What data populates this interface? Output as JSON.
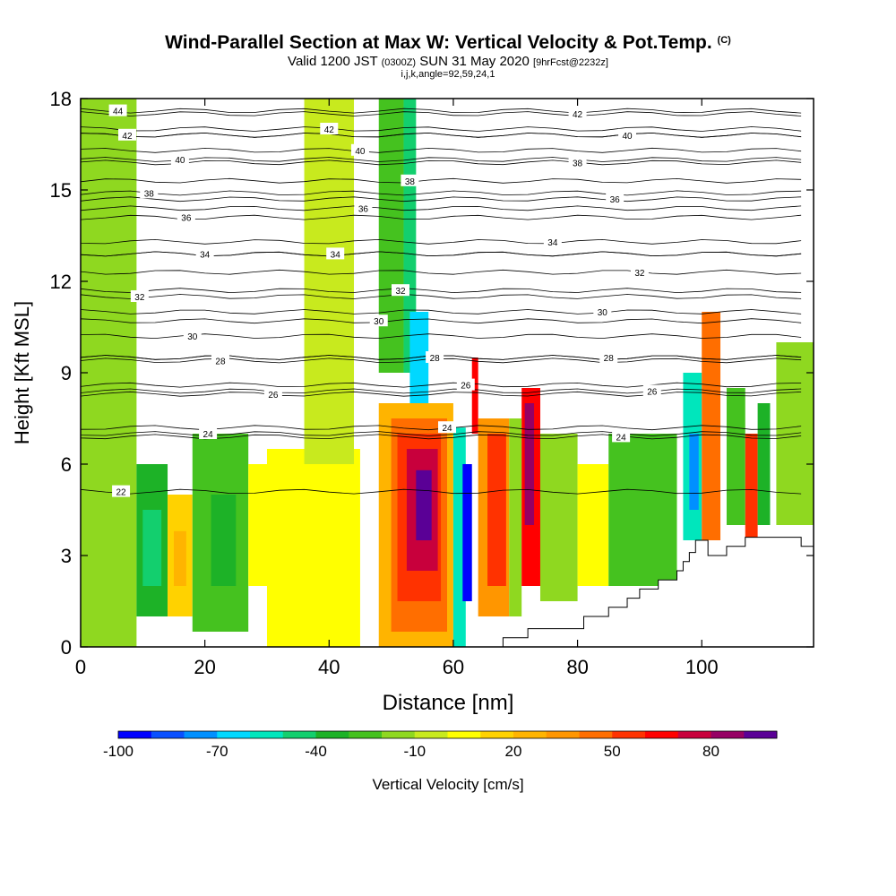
{
  "title": {
    "main": "Wind-Parallel Section at Max W: Vertical Velocity & Pot.Temp.",
    "copyright": "(C)",
    "valid_prefix": "Valid 1200 JST",
    "valid_utc": "(0300Z)",
    "valid_date": "SUN 31 May 2020",
    "forecast": "[9hrFcst@2232z]",
    "indices": "i,j,k,angle=92,59,24,1"
  },
  "chart_data": {
    "type": "heatmap",
    "xlabel": "Distance [nm]",
    "ylabel": "Height [Kft MSL]",
    "xlim": [
      0,
      118
    ],
    "ylim": [
      0,
      18
    ],
    "xticks": [
      0,
      20,
      40,
      60,
      80,
      100
    ],
    "yticks": [
      0,
      3,
      6,
      9,
      12,
      15,
      18
    ],
    "colorbar": {
      "label": "Vertical Velocity [cm/s]",
      "min": -100,
      "max": 100,
      "step": 10,
      "tick_values": [
        -100,
        -70,
        -40,
        -10,
        20,
        50,
        80
      ],
      "colors": [
        "#0000ff",
        "#0a50ff",
        "#0090ff",
        "#00d8ff",
        "#00e6bc",
        "#13cf6e",
        "#1db227",
        "#45c21f",
        "#8fd820",
        "#c8ea1e",
        "#ffff00",
        "#ffd200",
        "#ffb400",
        "#ff9600",
        "#ff6e00",
        "#ff3200",
        "#ff0000",
        "#c8003c",
        "#960064",
        "#5a0096"
      ]
    },
    "cells": [
      {
        "x0": 0,
        "x1": 9,
        "y0": 0,
        "y1": 18,
        "w": -12
      },
      {
        "x0": 9,
        "x1": 14,
        "y0": 1,
        "y1": 6,
        "w": -38
      },
      {
        "x0": 10,
        "x1": 13,
        "y0": 2,
        "y1": 4.5,
        "w": -45
      },
      {
        "x0": 14,
        "x1": 18,
        "y0": 1,
        "y1": 5,
        "w": 15
      },
      {
        "x0": 15,
        "x1": 17,
        "y0": 2,
        "y1": 3.8,
        "w": 25
      },
      {
        "x0": 18,
        "x1": 27,
        "y0": 0.5,
        "y1": 7,
        "w": -28
      },
      {
        "x0": 21,
        "x1": 25,
        "y0": 2,
        "y1": 5,
        "w": -40
      },
      {
        "x0": 27,
        "x1": 33,
        "y0": 2,
        "y1": 6,
        "w": 7
      },
      {
        "x0": 30,
        "x1": 45,
        "y0": 0,
        "y1": 6.5,
        "w": 5
      },
      {
        "x0": 36,
        "x1": 44,
        "y0": 6,
        "y1": 18,
        "w": -8
      },
      {
        "x0": 48,
        "x1": 52,
        "y0": 9,
        "y1": 18,
        "w": -28
      },
      {
        "x0": 52,
        "x1": 54,
        "y0": 9,
        "y1": 18,
        "w": -45
      },
      {
        "x0": 53,
        "x1": 56,
        "y0": 8,
        "y1": 11,
        "w": -62
      },
      {
        "x0": 48,
        "x1": 60,
        "y0": 0,
        "y1": 8,
        "w": 20
      },
      {
        "x0": 50,
        "x1": 59,
        "y0": 0.5,
        "y1": 7.5,
        "w": 40
      },
      {
        "x0": 51,
        "x1": 58,
        "y0": 1.5,
        "y1": 7,
        "w": 55
      },
      {
        "x0": 52.5,
        "x1": 57.5,
        "y0": 2.5,
        "y1": 6.5,
        "w": 72
      },
      {
        "x0": 54,
        "x1": 56.5,
        "y0": 3.5,
        "y1": 5.8,
        "w": 92
      },
      {
        "x0": 60,
        "x1": 62,
        "y0": 0,
        "y1": 7.2,
        "w": -55
      },
      {
        "x0": 61.5,
        "x1": 63,
        "y0": 1.5,
        "y1": 6,
        "w": -95
      },
      {
        "x0": 63,
        "x1": 64,
        "y0": 7,
        "y1": 9.5,
        "w": 65
      },
      {
        "x0": 64,
        "x1": 69,
        "y0": 1,
        "y1": 7.5,
        "w": 38
      },
      {
        "x0": 65.5,
        "x1": 68.5,
        "y0": 2,
        "y1": 7,
        "w": 52
      },
      {
        "x0": 69,
        "x1": 71,
        "y0": 1,
        "y1": 7.5,
        "w": -20
      },
      {
        "x0": 71,
        "x1": 74,
        "y0": 2,
        "y1": 8.5,
        "w": 60
      },
      {
        "x0": 71.5,
        "x1": 73,
        "y0": 4,
        "y1": 8,
        "w": 88
      },
      {
        "x0": 74,
        "x1": 80,
        "y0": 1.5,
        "y1": 7,
        "w": -18
      },
      {
        "x0": 80,
        "x1": 85,
        "y0": 2,
        "y1": 6,
        "w": 8
      },
      {
        "x0": 85,
        "x1": 96,
        "y0": 2,
        "y1": 7,
        "w": -28
      },
      {
        "x0": 97,
        "x1": 100,
        "y0": 3.5,
        "y1": 9,
        "w": -55
      },
      {
        "x0": 98,
        "x1": 99.5,
        "y0": 4.5,
        "y1": 7,
        "w": -75
      },
      {
        "x0": 100,
        "x1": 103,
        "y0": 3.5,
        "y1": 11,
        "w": 45
      },
      {
        "x0": 104,
        "x1": 107,
        "y0": 4,
        "y1": 8.5,
        "w": -30
      },
      {
        "x0": 107,
        "x1": 109,
        "y0": 3.5,
        "y1": 7,
        "w": 55
      },
      {
        "x0": 109,
        "x1": 111,
        "y0": 4,
        "y1": 8,
        "w": -40
      },
      {
        "x0": 112,
        "x1": 118,
        "y0": 4,
        "y1": 10,
        "w": -12
      }
    ],
    "terrain": [
      {
        "x": 0,
        "h": 0
      },
      {
        "x": 68,
        "h": 0
      },
      {
        "x": 68,
        "h": 0.3
      },
      {
        "x": 72,
        "h": 0.3
      },
      {
        "x": 72,
        "h": 0.6
      },
      {
        "x": 81,
        "h": 0.6
      },
      {
        "x": 81,
        "h": 1
      },
      {
        "x": 85,
        "h": 1
      },
      {
        "x": 85,
        "h": 1.3
      },
      {
        "x": 88,
        "h": 1.3
      },
      {
        "x": 88,
        "h": 1.6
      },
      {
        "x": 90,
        "h": 1.6
      },
      {
        "x": 90,
        "h": 1.9
      },
      {
        "x": 93,
        "h": 1.9
      },
      {
        "x": 93,
        "h": 2.2
      },
      {
        "x": 96,
        "h": 2.2
      },
      {
        "x": 96,
        "h": 2.5
      },
      {
        "x": 97,
        "h": 2.5
      },
      {
        "x": 97,
        "h": 2.8
      },
      {
        "x": 98,
        "h": 2.8
      },
      {
        "x": 98,
        "h": 3.1
      },
      {
        "x": 99,
        "h": 3.1
      },
      {
        "x": 99,
        "h": 3.5
      },
      {
        "x": 101,
        "h": 3.5
      },
      {
        "x": 101,
        "h": 3.0
      },
      {
        "x": 104,
        "h": 3.0
      },
      {
        "x": 104,
        "h": 3.3
      },
      {
        "x": 107,
        "h": 3.3
      },
      {
        "x": 107,
        "h": 3.6
      },
      {
        "x": 116,
        "h": 3.6
      },
      {
        "x": 116,
        "h": 3.3
      },
      {
        "x": 118,
        "h": 3.3
      }
    ],
    "theta_labels": [
      {
        "v": "44",
        "x": 6,
        "y": 17.6
      },
      {
        "v": "42",
        "x": 7.5,
        "y": 16.8
      },
      {
        "v": "40",
        "x": 16,
        "y": 16.0
      },
      {
        "v": "38",
        "x": 11,
        "y": 14.9
      },
      {
        "v": "36",
        "x": 17,
        "y": 14.1
      },
      {
        "v": "34",
        "x": 20,
        "y": 12.9
      },
      {
        "v": "32",
        "x": 9.5,
        "y": 11.5
      },
      {
        "v": "30",
        "x": 18,
        "y": 10.2
      },
      {
        "v": "28",
        "x": 22.5,
        "y": 9.4
      },
      {
        "v": "26",
        "x": 31,
        "y": 8.3
      },
      {
        "v": "24",
        "x": 20.5,
        "y": 7.0
      },
      {
        "v": "22",
        "x": 6.5,
        "y": 5.1
      },
      {
        "v": "42",
        "x": 40,
        "y": 17.0
      },
      {
        "v": "40",
        "x": 45,
        "y": 16.3
      },
      {
        "v": "38",
        "x": 53,
        "y": 15.3
      },
      {
        "v": "36",
        "x": 45.5,
        "y": 14.4
      },
      {
        "v": "34",
        "x": 41,
        "y": 12.9
      },
      {
        "v": "32",
        "x": 51.5,
        "y": 11.7
      },
      {
        "v": "30",
        "x": 48,
        "y": 10.7
      },
      {
        "v": "28",
        "x": 57,
        "y": 9.5
      },
      {
        "v": "26",
        "x": 62,
        "y": 8.6
      },
      {
        "v": "24",
        "x": 59,
        "y": 7.2
      },
      {
        "v": "42",
        "x": 80,
        "y": 17.5
      },
      {
        "v": "40",
        "x": 88,
        "y": 16.8
      },
      {
        "v": "38",
        "x": 80,
        "y": 15.9
      },
      {
        "v": "36",
        "x": 86,
        "y": 14.7
      },
      {
        "v": "34",
        "x": 76,
        "y": 13.3
      },
      {
        "v": "32",
        "x": 90,
        "y": 12.3
      },
      {
        "v": "30",
        "x": 84,
        "y": 11.0
      },
      {
        "v": "28",
        "x": 85,
        "y": 9.5
      },
      {
        "v": "26",
        "x": 92,
        "y": 8.4
      },
      {
        "v": "24",
        "x": 87,
        "y": 6.9
      }
    ]
  }
}
